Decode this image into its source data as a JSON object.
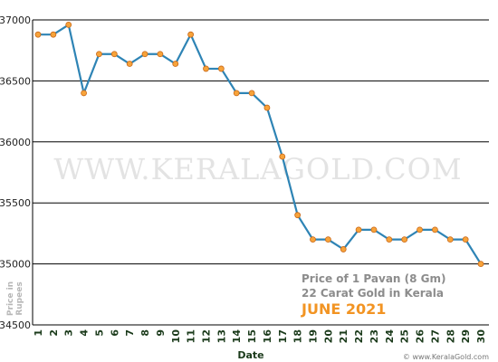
{
  "chart_data": {
    "type": "line",
    "title_line1": "Price of 1 Pavan (8 Gm)",
    "title_line2": "22 Carat Gold in Kerala",
    "title_line3": "JUNE 2021",
    "xlabel": "Date",
    "ylabel_line1": "Price in",
    "ylabel_line2": "Rupees",
    "watermark": "WWW.KERALAGOLD.COM",
    "credit": "© www.KeralaGold.com",
    "ylim": [
      34500,
      37000
    ],
    "yticks": [
      34500,
      35000,
      35500,
      36000,
      36500,
      37000
    ],
    "x": [
      1,
      2,
      3,
      4,
      5,
      6,
      7,
      8,
      9,
      10,
      11,
      12,
      13,
      14,
      15,
      16,
      17,
      18,
      19,
      20,
      21,
      22,
      23,
      24,
      25,
      26,
      27,
      28,
      29,
      30
    ],
    "series": [
      {
        "values": [
          36880,
          36880,
          36960,
          36400,
          36720,
          36720,
          36640,
          36720,
          36720,
          36640,
          36880,
          36600,
          36600,
          36400,
          36400,
          36280,
          35880,
          35400,
          35200,
          35200,
          35120,
          35280,
          35280,
          35200,
          35200,
          35280,
          35280,
          35200,
          35200,
          35000
        ]
      }
    ],
    "grid": "horizontal",
    "colors": {
      "line": "#2e84b5",
      "marker_fill": "#f7a33a",
      "marker_stroke": "#c9691a",
      "accent": "#f29423"
    }
  }
}
